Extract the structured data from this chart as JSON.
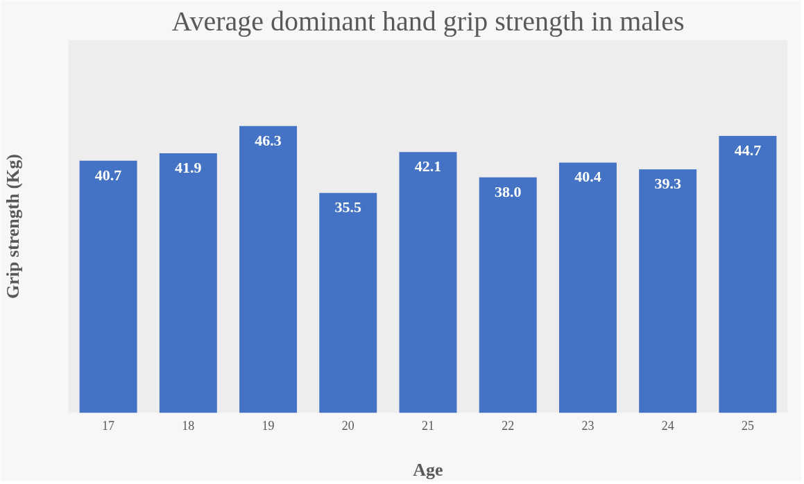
{
  "chart_data": {
    "type": "bar",
    "title": "Average dominant hand grip strength in males",
    "xlabel": "Age",
    "ylabel": "Grip strength (Kg)",
    "categories": [
      "17",
      "18",
      "19",
      "20",
      "21",
      "22",
      "23",
      "24",
      "25"
    ],
    "values": [
      40.7,
      41.9,
      46.3,
      35.5,
      42.1,
      38.0,
      40.4,
      39.3,
      44.7
    ],
    "value_labels": [
      "40.7",
      "41.9",
      "46.3",
      "35.5",
      "42.1",
      "38.0",
      "40.4",
      "39.3",
      "44.7"
    ],
    "color": "#4472c4",
    "grid": false
  }
}
